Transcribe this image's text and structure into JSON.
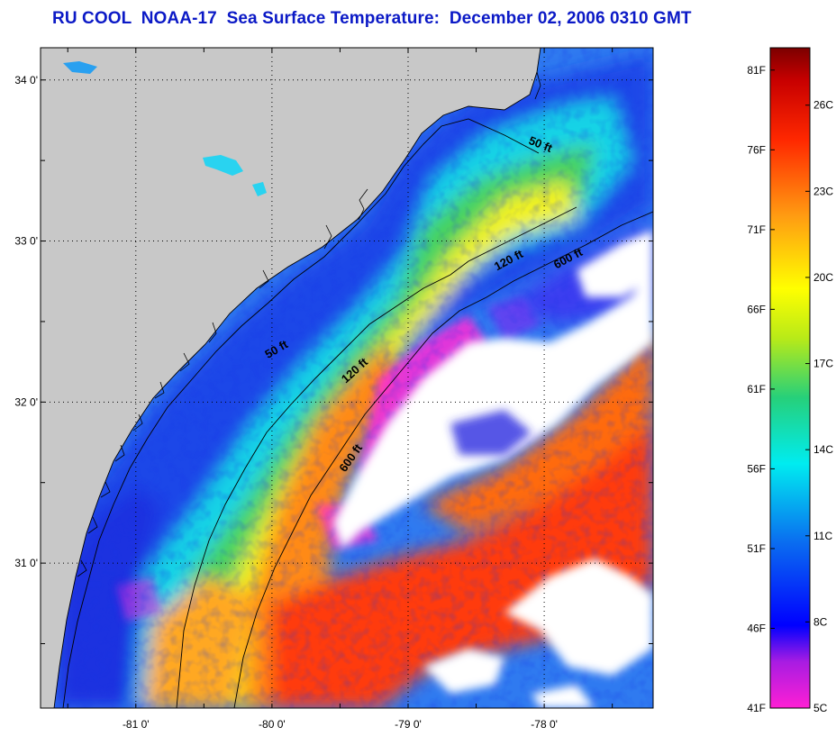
{
  "title": "RU COOL  NOAA-17  Sea Surface Temperature:  December 02, 2006 0310 GMT",
  "map": {
    "lon_range": [
      -81.7,
      -77.2
    ],
    "lat_range": [
      30.1,
      34.2
    ],
    "lon_ticks": [
      {
        "value": -81,
        "label": "-81 0'"
      },
      {
        "value": -80,
        "label": "-80 0'"
      },
      {
        "value": -79,
        "label": "-79 0'"
      },
      {
        "value": -78,
        "label": "-78 0'"
      }
    ],
    "lat_ticks": [
      {
        "value": 31,
        "label": "31 0'"
      },
      {
        "value": 32,
        "label": "32 0'"
      },
      {
        "value": 33,
        "label": "33 0'"
      },
      {
        "value": 34,
        "label": "34 0'"
      }
    ],
    "isobath_labels": [
      "50 ft",
      "120 ft",
      "600 ft",
      "50 ft",
      "120 ft",
      "600 ft"
    ],
    "land_color": "#c8c8c8",
    "cloud_color": "#ffffff"
  },
  "colorbar": {
    "fahrenheit_labels": [
      "81F",
      "76F",
      "71F",
      "66F",
      "61F",
      "56F",
      "51F",
      "46F",
      "41F"
    ],
    "celsius_labels": [
      "26C",
      "23C",
      "20C",
      "17C",
      "14C",
      "11C",
      "8C",
      "5C"
    ],
    "range_c": [
      5,
      28
    ]
  },
  "colors": {
    "title": "#0b19c6",
    "scale": [
      "#ff1fd4",
      "#7a1be0",
      "#0000ff",
      "#0a6cf0",
      "#00ecf0",
      "#26d07a",
      "#b8ea18",
      "#ffff00",
      "#ff9c12",
      "#ff2800",
      "#c80000",
      "#7c0000"
    ]
  }
}
